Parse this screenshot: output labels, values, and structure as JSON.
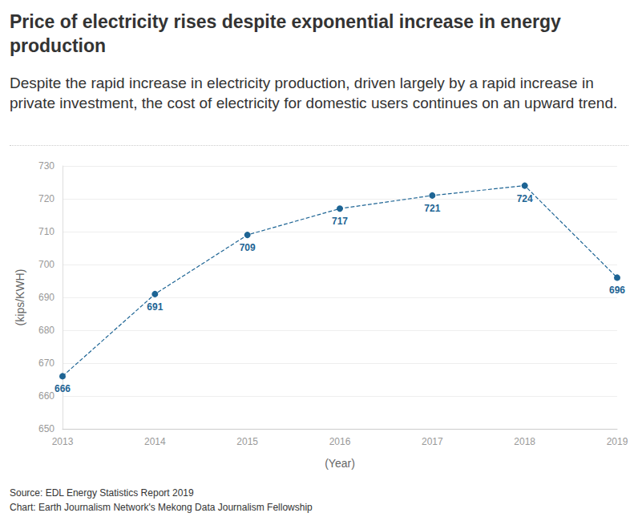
{
  "chart_data": {
    "type": "line",
    "title": "Price of electricity rises despite exponential increase in energy production",
    "subtitle": "Despite the rapid increase in electricity production, driven largely by a rapid increase in private investment, the cost of electricity for domestic users continues on an upward trend.",
    "x_label": "(Year)",
    "y_label": "(kips/KWH)",
    "x": [
      2013,
      2014,
      2015,
      2016,
      2017,
      2018,
      2019
    ],
    "values": [
      666,
      691,
      709,
      717,
      721,
      724,
      696
    ],
    "color": "#1d6494",
    "xlim": [
      2013,
      2019
    ],
    "xticks": [
      2013,
      2014,
      2015,
      2016,
      2017,
      2018,
      2019
    ],
    "ylim": [
      650,
      730
    ],
    "yticks": [
      650,
      660,
      670,
      680,
      690,
      700,
      710,
      720,
      730
    ],
    "grid": true,
    "data_labels": true,
    "marker": "circle",
    "line_style": "dashed",
    "source": "Source: EDL Energy Statistics Report 2019",
    "credit": "Chart: Earth Journalism Network's Mekong Data Journalism Fellowship"
  }
}
